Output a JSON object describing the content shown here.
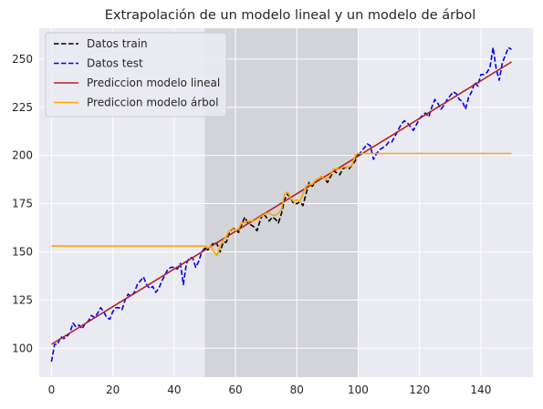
{
  "chart_data": {
    "type": "line",
    "title": "Extrapolación de un modelo lineal y un modelo de árbol",
    "xlabel": "",
    "ylabel": "",
    "xlim": [
      -4,
      157
    ],
    "ylim": [
      85,
      266
    ],
    "xticks": [
      0,
      20,
      40,
      60,
      80,
      100,
      120,
      140
    ],
    "yticks": [
      100,
      125,
      150,
      175,
      200,
      225,
      250
    ],
    "grid": true,
    "legend_position": "top-left",
    "shaded_region": {
      "x_start": 50,
      "x_end": 100,
      "color": "#d3d4d9"
    },
    "colors": {
      "background": "#eaeaf2",
      "grid": "#ffffff",
      "train": "#000000",
      "test": "#0000ee",
      "linear": "#b22222",
      "tree": "#ffa500"
    },
    "series": [
      {
        "name": "Datos test",
        "style": "dashed",
        "color": "#0000ee",
        "segments": [
          {
            "x": [
              0,
              1,
              2,
              3,
              4,
              5,
              6,
              7,
              8,
              9,
              10,
              11,
              12,
              13,
              14,
              15,
              16,
              17,
              18,
              19,
              20,
              21,
              22,
              23,
              24,
              25,
              26,
              27,
              28,
              29,
              30,
              31,
              32,
              33,
              34,
              35,
              36,
              37,
              38,
              39,
              40,
              41,
              42,
              43,
              44,
              45,
              46,
              47,
              48,
              49,
              50
            ],
            "y": [
              93,
              102,
              102,
              106,
              105,
              106,
              108,
              113,
              111,
              112,
              110,
              113,
              114,
              117,
              116,
              118,
              121,
              119,
              116,
              115,
              119,
              121,
              121,
              120,
              125,
              128,
              127,
              129,
              133,
              135,
              137,
              133,
              131,
              132,
              129,
              131,
              135,
              138,
              141,
              142,
              142,
              141,
              144,
              133,
              144,
              147,
              147,
              142,
              145,
              150,
              152
            ]
          },
          {
            "x": [
              100,
              101,
              102,
              103,
              104,
              105,
              106,
              107,
              108,
              109,
              110,
              111,
              112,
              113,
              114,
              115,
              116,
              117,
              118,
              119,
              120,
              121,
              122,
              123,
              124,
              125,
              126,
              127,
              128,
              129,
              130,
              131,
              132,
              133,
              134,
              135,
              136,
              137,
              138,
              139,
              140,
              141,
              142,
              143,
              144,
              145,
              146,
              147,
              148,
              149,
              150
            ],
            "y": [
              200,
              202,
              204,
              206,
              205,
              198,
              201,
              203,
              204,
              205,
              207,
              207,
              210,
              213,
              216,
              218,
              217,
              215,
              213,
              216,
              219,
              221,
              222,
              220,
              225,
              229,
              227,
              224,
              226,
              229,
              231,
              233,
              232,
              229,
              228,
              224,
              230,
              233,
              238,
              236,
              242,
              242,
              243,
              246,
              256,
              245,
              239,
              248,
              252,
              256,
              255
            ]
          }
        ]
      },
      {
        "name": "Datos train",
        "style": "dashed",
        "color": "#000000",
        "x": [
          50,
          51,
          52,
          53,
          54,
          55,
          56,
          57,
          58,
          59,
          60,
          61,
          62,
          63,
          64,
          65,
          66,
          67,
          68,
          69,
          70,
          71,
          72,
          73,
          74,
          75,
          76,
          77,
          78,
          79,
          80,
          81,
          82,
          83,
          84,
          85,
          86,
          87,
          88,
          89,
          90,
          91,
          92,
          93,
          94,
          95,
          96,
          97,
          98,
          99,
          100
        ],
        "y": [
          152,
          151,
          153,
          155,
          154,
          150,
          155,
          155,
          160,
          162,
          162,
          160,
          164,
          168,
          165,
          164,
          163,
          161,
          166,
          170,
          168,
          166,
          168,
          167,
          165,
          170,
          177,
          180,
          178,
          175,
          175,
          176,
          174,
          180,
          186,
          184,
          186,
          187,
          189,
          188,
          186,
          189,
          192,
          191,
          190,
          193,
          194,
          193,
          195,
          197,
          201
        ]
      },
      {
        "name": "Prediccion modelo lineal",
        "style": "solid",
        "color": "#b22222",
        "x": [
          0,
          150
        ],
        "y": [
          102,
          248.5
        ]
      },
      {
        "name": "Prediccion modelo árbol",
        "style": "solid",
        "color": "#ffa500",
        "x": [
          0,
          50,
          51,
          52,
          53,
          54,
          55,
          56,
          57,
          58,
          59,
          60,
          61,
          62,
          63,
          64,
          65,
          66,
          67,
          68,
          69,
          70,
          71,
          72,
          73,
          74,
          75,
          76,
          77,
          78,
          79,
          80,
          81,
          82,
          83,
          84,
          85,
          86,
          87,
          88,
          89,
          90,
          91,
          92,
          93,
          94,
          95,
          96,
          97,
          98,
          99,
          100,
          150
        ],
        "y": [
          153,
          153,
          152,
          153,
          150,
          148,
          153,
          156,
          158,
          161,
          162,
          161,
          162,
          165,
          165,
          166,
          166,
          166,
          167,
          168,
          169,
          170,
          170,
          169,
          169,
          170,
          172,
          180,
          181,
          178,
          176,
          177,
          176,
          180,
          184,
          185,
          185,
          187,
          188,
          189,
          188,
          188,
          190,
          193,
          193,
          193,
          194,
          194,
          194,
          195,
          200,
          201,
          201
        ]
      }
    ],
    "legend_order": [
      "Datos train",
      "Datos test",
      "Prediccion modelo lineal",
      "Prediccion modelo árbol"
    ]
  }
}
